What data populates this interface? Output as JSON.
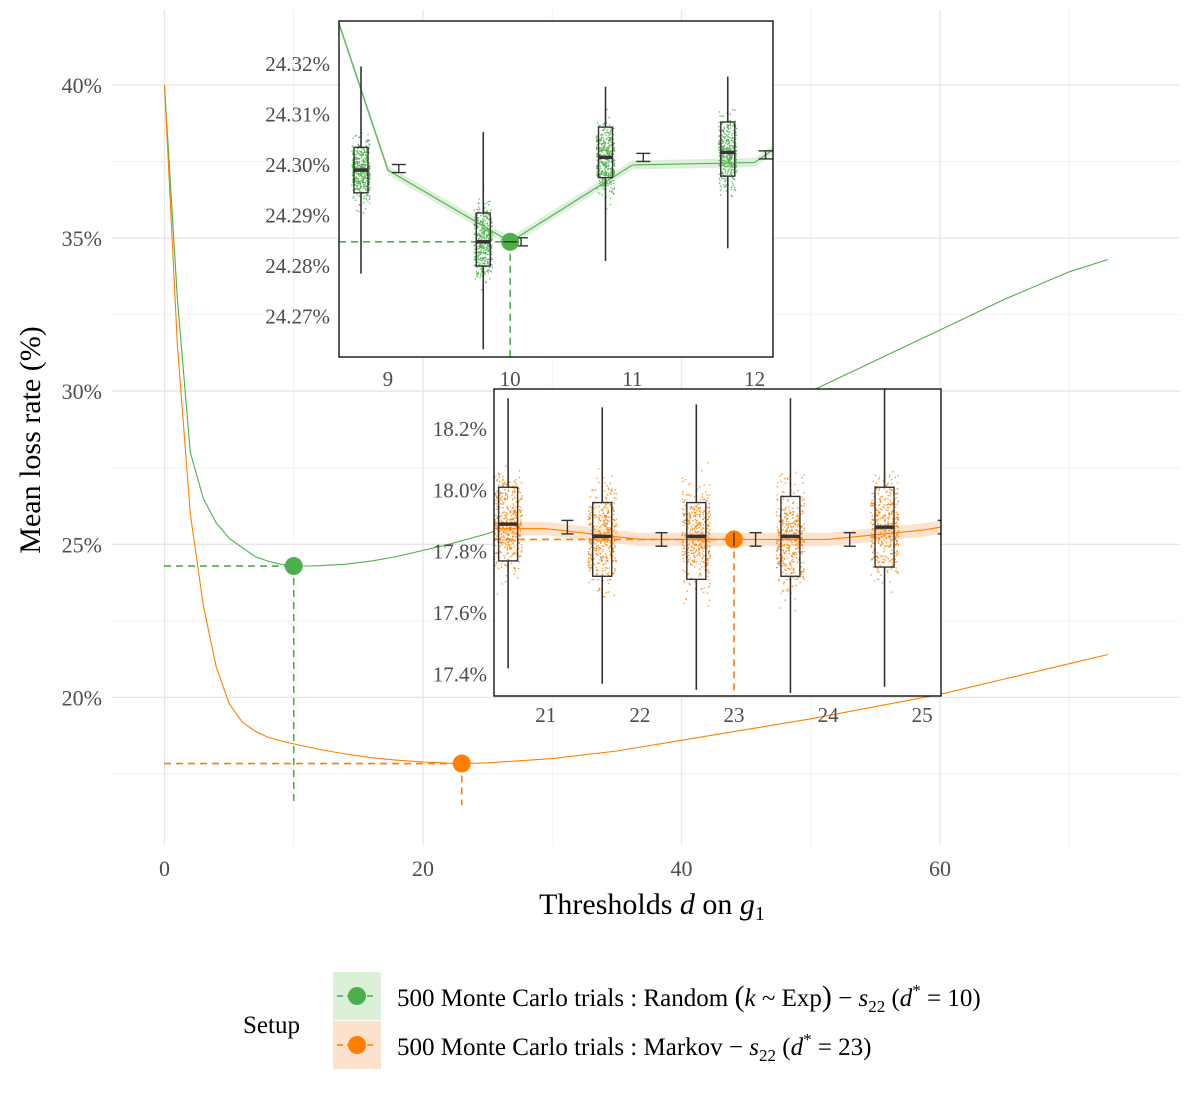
{
  "chart_data": {
    "type": "line",
    "xlabel": "Thresholds d on g1",
    "xlabel_parts": {
      "main": "Thresholds ",
      "var": "d",
      "mid": " on ",
      "gvar": "g",
      "sub": "1"
    },
    "ylabel": "Mean loss rate (%)",
    "xlim": [
      0,
      73
    ],
    "ylim": [
      15,
      41
    ],
    "x_ticks": [
      "0",
      "20",
      "40",
      "60"
    ],
    "x_tick_values": [
      0,
      20,
      40,
      60
    ],
    "y_ticks": [
      "20%",
      "25%",
      "30%",
      "35%",
      "40%"
    ],
    "y_tick_values": [
      20,
      25,
      30,
      35,
      40
    ],
    "grid": true,
    "legend": {
      "title": "Setup",
      "placement": "bottom",
      "entries": [
        "500 Monte Carlo trials : Random (k ~ Exp) − s22 (d* = 10)",
        "500 Monte Carlo trials : Markov − s22 (d* = 23)"
      ],
      "entry_parts": [
        {
          "prefix": "500 Monte Carlo trials :  Random ",
          "lp": "(",
          "k": "k",
          "tilde": " ~ Exp",
          "rp": ")",
          "minus": " − ",
          "s": "s",
          "sub": "22",
          "dstar_open": "  (",
          "d": "d",
          "star": "*",
          "eq": " = 10)"
        },
        {
          "prefix": "500 Monte Carlo trials :  Markov",
          "minus": " − ",
          "s": "s",
          "sub": "22",
          "dstar_open": "  (",
          "d": "d",
          "star": "*",
          "eq": " = 23)"
        }
      ]
    },
    "colors": {
      "green": "#4daf4a",
      "orange": "#ff7f00",
      "green_fill": "#dcefd9",
      "orange_fill": "#fde2cb"
    },
    "series": [
      {
        "name": "500 Monte Carlo trials : Random (k ~ Exp) − s22 (d* = 10)",
        "color": "#4daf4a",
        "x": [
          0,
          1,
          2,
          3,
          4,
          5,
          6,
          7,
          8,
          9,
          10,
          11,
          12,
          14,
          16,
          18,
          20,
          22,
          25,
          30,
          35,
          40,
          45,
          50,
          55,
          60,
          65,
          70,
          73
        ],
        "y": [
          40.0,
          33.0,
          28.0,
          26.5,
          25.7,
          25.2,
          24.9,
          24.6,
          24.45,
          24.35,
          24.29,
          24.29,
          24.3,
          24.35,
          24.45,
          24.6,
          24.8,
          25.0,
          25.35,
          26.1,
          27.0,
          28.0,
          29.0,
          30.0,
          31.0,
          32.0,
          33.0,
          33.9,
          34.3
        ],
        "optimum": {
          "x": 10,
          "y": 24.29
        }
      },
      {
        "name": "500 Monte Carlo trials : Markov − s22 (d* = 23)",
        "color": "#ff7f00",
        "x": [
          0,
          1,
          2,
          3,
          4,
          5,
          6,
          7,
          8,
          9,
          10,
          12,
          14,
          16,
          18,
          20,
          22,
          23,
          25,
          30,
          35,
          40,
          45,
          50,
          55,
          60,
          65,
          70,
          73
        ],
        "y": [
          40.0,
          31.5,
          26.0,
          23.0,
          21.0,
          19.8,
          19.2,
          18.9,
          18.7,
          18.58,
          18.48,
          18.3,
          18.15,
          18.03,
          17.95,
          17.89,
          17.85,
          17.84,
          17.86,
          18.0,
          18.25,
          18.6,
          18.95,
          19.3,
          19.7,
          20.1,
          20.6,
          21.1,
          21.4
        ],
        "optimum": {
          "x": 23,
          "y": 17.84
        }
      }
    ],
    "insets": [
      {
        "color": "#4daf4a",
        "x_ticks": [
          "9",
          "10",
          "11",
          "12"
        ],
        "x_tick_values": [
          9,
          10,
          11,
          12
        ],
        "xlim": [
          8.6,
          12.15
        ],
        "y_ticks": [
          "24.27%",
          "24.28%",
          "24.29%",
          "24.30%",
          "24.31%",
          "24.32%"
        ],
        "y_tick_values": [
          24.27,
          24.28,
          24.29,
          24.3,
          24.31,
          24.32
        ],
        "ylim": [
          24.262,
          24.3285
        ],
        "line": {
          "x": [
            8.6,
            9,
            10,
            11,
            12,
            12.15
          ],
          "y": [
            24.328,
            24.299,
            24.2848,
            24.3,
            24.3005,
            24.303
          ]
        },
        "ci_halfwidth": 0.0009,
        "optimum": {
          "x": 10,
          "y": 24.2848
        },
        "boxes": [
          {
            "x": 9,
            "q1": 24.2945,
            "median": 24.299,
            "q3": 24.3035,
            "wlow": 24.2785,
            "whigh": 24.3195,
            "jmin": 24.2785,
            "jmax": 24.3205,
            "mean": 24.2993,
            "ci": 0.0008
          },
          {
            "x": 10,
            "q1": 24.28,
            "median": 24.2848,
            "q3": 24.2905,
            "wlow": 24.2635,
            "whigh": 24.3065,
            "jmin": 24.2635,
            "jmax": 24.3065,
            "mean": 24.2848,
            "ci": 0.0008
          },
          {
            "x": 11,
            "q1": 24.2975,
            "median": 24.3015,
            "q3": 24.3075,
            "wlow": 24.281,
            "whigh": 24.3155,
            "jmin": 24.281,
            "jmax": 24.3165,
            "mean": 24.3015,
            "ci": 0.0008
          },
          {
            "x": 12,
            "q1": 24.2978,
            "median": 24.3025,
            "q3": 24.3085,
            "wlow": 24.2835,
            "whigh": 24.3175,
            "jmin": 24.2805,
            "jmax": 24.3175,
            "mean": 24.302,
            "ci": 0.0008
          }
        ]
      },
      {
        "color": "#ff7f00",
        "x_ticks": [
          "21",
          "22",
          "23",
          "24",
          "25"
        ],
        "x_tick_values": [
          21,
          22,
          23,
          24,
          25
        ],
        "xlim": [
          20.45,
          25.2
        ],
        "y_ticks": [
          "17.4%",
          "17.6%",
          "17.8%",
          "18.0%",
          "18.2%"
        ],
        "y_tick_values": [
          17.4,
          17.6,
          17.8,
          18.0,
          18.2
        ],
        "ylim": [
          17.33,
          18.33
        ],
        "line": {
          "x": [
            20.45,
            21,
            22,
            23,
            24,
            25,
            25.2
          ],
          "y": [
            17.875,
            17.875,
            17.84,
            17.84,
            17.84,
            17.87,
            17.88
          ]
        },
        "ci_halfwidth": 0.022,
        "optimum": {
          "x": 23,
          "y": 17.84
        },
        "boxes": [
          {
            "x": 21,
            "q1": 17.77,
            "median": 17.89,
            "q3": 18.01,
            "wlow": 17.42,
            "whigh": 18.3,
            "jmin": 17.42,
            "jmax": 18.3,
            "mean": 17.88,
            "ci": 0.022
          },
          {
            "x": 22,
            "q1": 17.72,
            "median": 17.85,
            "q3": 17.96,
            "wlow": 17.37,
            "whigh": 18.27,
            "jmin": 17.37,
            "jmax": 18.27,
            "mean": 17.84,
            "ci": 0.022
          },
          {
            "x": 23,
            "q1": 17.71,
            "median": 17.85,
            "q3": 17.96,
            "wlow": 17.35,
            "whigh": 18.28,
            "jmin": 17.35,
            "jmax": 18.28,
            "mean": 17.84,
            "ci": 0.022
          },
          {
            "x": 24,
            "q1": 17.72,
            "median": 17.85,
            "q3": 17.98,
            "wlow": 17.34,
            "whigh": 18.3,
            "jmin": 17.34,
            "jmax": 18.3,
            "mean": 17.84,
            "ci": 0.022
          },
          {
            "x": 25,
            "q1": 17.75,
            "median": 17.88,
            "q3": 18.01,
            "wlow": 17.36,
            "whigh": 18.34,
            "jmin": 17.36,
            "jmax": 18.34,
            "mean": 17.88,
            "ci": 0.022
          }
        ]
      }
    ]
  }
}
